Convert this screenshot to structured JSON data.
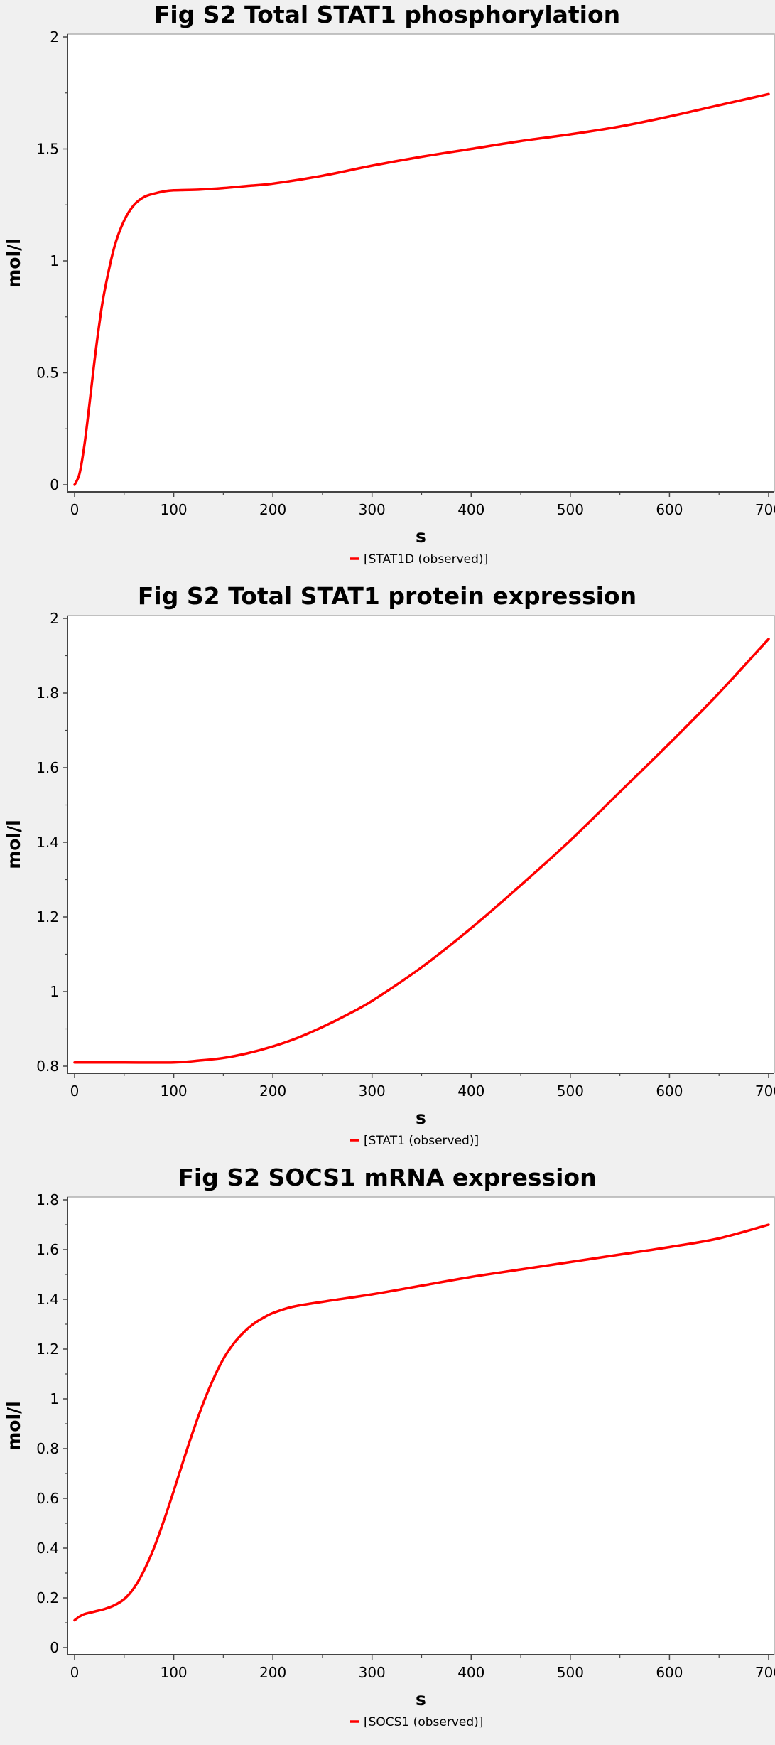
{
  "chart_data": [
    {
      "type": "line",
      "title": "Fig S2 Total STAT1 phosphorylation",
      "xlabel": "s",
      "ylabel": "mol/l",
      "xlim": [
        0,
        700
      ],
      "ylim": [
        0,
        2
      ],
      "xticks": [
        0,
        100,
        200,
        300,
        400,
        500,
        600,
        700
      ],
      "yticks": [
        0,
        0.5,
        1,
        1.5,
        2
      ],
      "grid": false,
      "legend_position": "bottom",
      "series": [
        {
          "name": "[STAT1D (observed)]",
          "color": "#ff0000",
          "x": [
            0,
            5,
            10,
            15,
            20,
            25,
            30,
            40,
            50,
            60,
            70,
            80,
            90,
            100,
            125,
            150,
            175,
            200,
            250,
            300,
            350,
            400,
            450,
            500,
            550,
            600,
            650,
            700
          ],
          "y": [
            0,
            0.05,
            0.18,
            0.36,
            0.55,
            0.72,
            0.86,
            1.06,
            1.18,
            1.25,
            1.285,
            1.3,
            1.31,
            1.315,
            1.318,
            1.325,
            1.335,
            1.345,
            1.38,
            1.425,
            1.465,
            1.5,
            1.535,
            1.565,
            1.6,
            1.645,
            1.695,
            1.745
          ]
        }
      ]
    },
    {
      "type": "line",
      "title": "Fig S2 Total STAT1 protein expression",
      "xlabel": "s",
      "ylabel": "mol/l",
      "xlim": [
        0,
        700
      ],
      "ylim": [
        0.8,
        2
      ],
      "xticks": [
        0,
        100,
        200,
        300,
        400,
        500,
        600,
        700
      ],
      "yticks": [
        0.8,
        1,
        1.2,
        1.4,
        1.6,
        1.8,
        2
      ],
      "grid": false,
      "legend_position": "bottom",
      "series": [
        {
          "name": "[STAT1 (observed)]",
          "color": "#ff0000",
          "x": [
            0,
            50,
            100,
            125,
            150,
            175,
            200,
            225,
            250,
            275,
            300,
            350,
            400,
            450,
            500,
            550,
            600,
            650,
            700
          ],
          "y": [
            0.81,
            0.81,
            0.81,
            0.815,
            0.822,
            0.835,
            0.853,
            0.876,
            0.905,
            0.938,
            0.975,
            1.065,
            1.17,
            1.285,
            1.405,
            1.535,
            1.665,
            1.8,
            1.945
          ]
        }
      ]
    },
    {
      "type": "line",
      "title": "Fig S2 SOCS1 mRNA expression",
      "xlabel": "s",
      "ylabel": "mol/l",
      "xlim": [
        0,
        700
      ],
      "ylim": [
        0,
        1.8
      ],
      "xticks": [
        0,
        100,
        200,
        300,
        400,
        500,
        600,
        700
      ],
      "yticks": [
        0,
        0.2,
        0.4,
        0.6,
        0.8,
        1,
        1.2,
        1.4,
        1.6,
        1.8
      ],
      "grid": false,
      "legend_position": "bottom",
      "series": [
        {
          "name": "[SOCS1 (observed)]",
          "color": "#ff0000",
          "x": [
            0,
            5,
            10,
            20,
            30,
            40,
            50,
            60,
            70,
            80,
            90,
            100,
            110,
            120,
            130,
            140,
            150,
            160,
            170,
            180,
            190,
            200,
            220,
            250,
            300,
            350,
            400,
            450,
            500,
            550,
            600,
            650,
            700
          ],
          "y": [
            0.11,
            0.125,
            0.135,
            0.145,
            0.155,
            0.17,
            0.195,
            0.24,
            0.31,
            0.4,
            0.51,
            0.63,
            0.755,
            0.875,
            0.985,
            1.08,
            1.16,
            1.22,
            1.265,
            1.3,
            1.325,
            1.345,
            1.37,
            1.39,
            1.42,
            1.455,
            1.49,
            1.52,
            1.55,
            1.58,
            1.61,
            1.645,
            1.7
          ]
        }
      ]
    }
  ]
}
